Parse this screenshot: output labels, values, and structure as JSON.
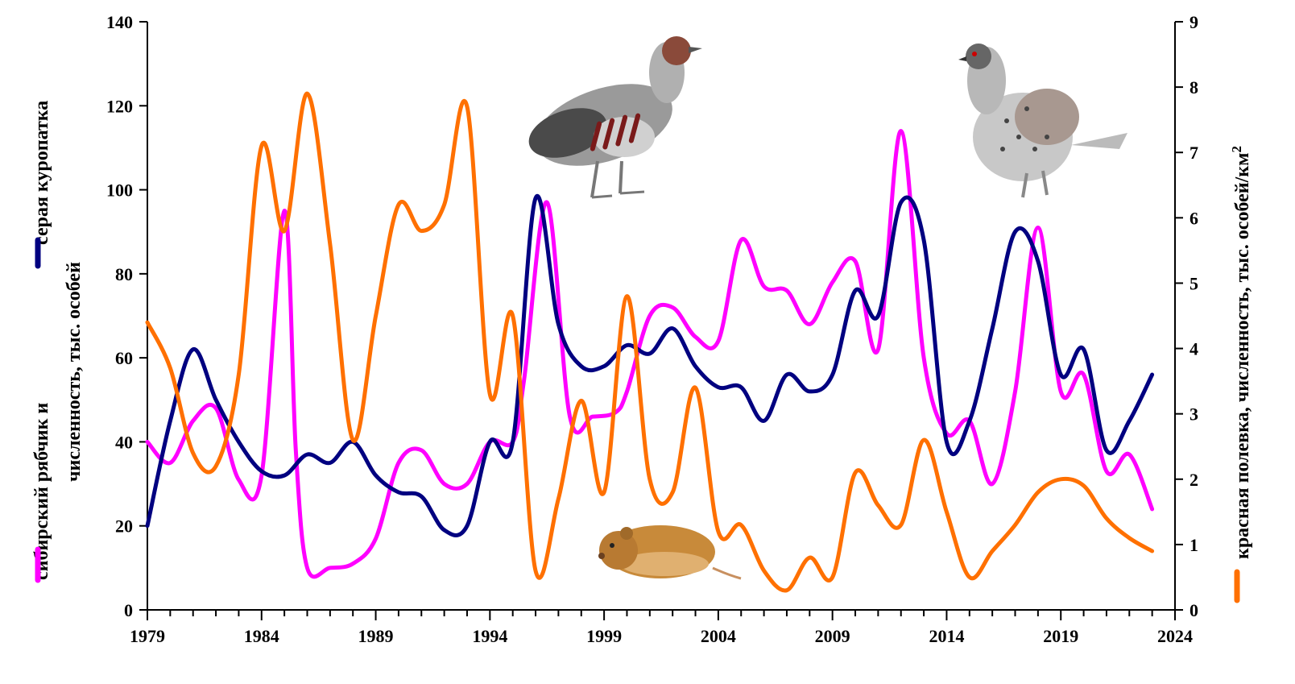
{
  "chart_data": {
    "type": "line",
    "x_range": [
      1979,
      2024
    ],
    "x_ticks": [
      1979,
      1984,
      1989,
      1994,
      1999,
      2004,
      2009,
      2014,
      2019,
      2024
    ],
    "y_left": {
      "range": [
        0,
        140
      ],
      "ticks": [
        0,
        20,
        40,
        60,
        80,
        100,
        120,
        140
      ]
    },
    "y_right": {
      "range": [
        0,
        9
      ],
      "ticks": [
        0,
        1,
        2,
        3,
        4,
        5,
        6,
        7,
        8,
        9
      ]
    },
    "left_axis_title_line1": "сибирский рябчик и серая куропатка",
    "left_axis_title_line1a": "сибирский рябчик и",
    "left_axis_title_line1b": "серая куропатка",
    "left_axis_title_line2": "численность, тыс. особей",
    "right_axis_title": "красная полевка, численность, тыс. особей/км",
    "right_axis_title_sup": "2",
    "grid": false,
    "series": [
      {
        "color": "#ff00ff",
        "axis": "left",
        "points": [
          [
            1979,
            40
          ],
          [
            1980,
            35
          ],
          [
            1981,
            45
          ],
          [
            1982,
            48
          ],
          [
            1983,
            31
          ],
          [
            1984,
            32
          ],
          [
            1985,
            95
          ],
          [
            1985.5,
            38
          ],
          [
            1986,
            10
          ],
          [
            1987,
            10
          ],
          [
            1988,
            11
          ],
          [
            1989,
            17
          ],
          [
            1990,
            35
          ],
          [
            1991,
            38
          ],
          [
            1992,
            30
          ],
          [
            1993,
            30
          ],
          [
            1994,
            40
          ],
          [
            1995,
            40
          ],
          [
            1995.5,
            55
          ],
          [
            1996.5,
            97
          ],
          [
            1997.5,
            46
          ],
          [
            1998.5,
            46
          ],
          [
            1999.5,
            47
          ],
          [
            2000,
            52
          ],
          [
            2001,
            70
          ],
          [
            2002,
            72
          ],
          [
            2003,
            65
          ],
          [
            2004,
            64
          ],
          [
            2005,
            88
          ],
          [
            2006,
            77
          ],
          [
            2007,
            76
          ],
          [
            2008,
            68
          ],
          [
            2009,
            78
          ],
          [
            2010,
            83
          ],
          [
            2011,
            62
          ],
          [
            2012,
            114
          ],
          [
            2013,
            60
          ],
          [
            2014,
            42
          ],
          [
            2015,
            45
          ],
          [
            2016,
            30
          ],
          [
            2017,
            52
          ],
          [
            2018,
            91
          ],
          [
            2019,
            52
          ],
          [
            2020,
            56
          ],
          [
            2021,
            33
          ],
          [
            2022,
            37
          ],
          [
            2023,
            24
          ]
        ]
      },
      {
        "color": "#000080",
        "axis": "left",
        "points": [
          [
            1979,
            20
          ],
          [
            1980,
            45
          ],
          [
            1981,
            62
          ],
          [
            1982,
            50
          ],
          [
            1983,
            40
          ],
          [
            1984,
            33
          ],
          [
            1985,
            32
          ],
          [
            1986,
            37
          ],
          [
            1987,
            35
          ],
          [
            1988,
            40
          ],
          [
            1989,
            32
          ],
          [
            1990,
            28
          ],
          [
            1991,
            27
          ],
          [
            1992,
            19
          ],
          [
            1993,
            20
          ],
          [
            1994,
            40
          ],
          [
            1995,
            40
          ],
          [
            1996,
            98
          ],
          [
            1997,
            68
          ],
          [
            1998,
            58
          ],
          [
            1999,
            58
          ],
          [
            2000,
            63
          ],
          [
            2001,
            61
          ],
          [
            2002,
            67
          ],
          [
            2003,
            58
          ],
          [
            2004,
            53
          ],
          [
            2005,
            53
          ],
          [
            2006,
            45
          ],
          [
            2007,
            56
          ],
          [
            2008,
            52
          ],
          [
            2009,
            56
          ],
          [
            2010,
            76
          ],
          [
            2011,
            70
          ],
          [
            2012,
            97
          ],
          [
            2013,
            88
          ],
          [
            2014,
            40
          ],
          [
            2015,
            45
          ],
          [
            2016,
            67
          ],
          [
            2017,
            90
          ],
          [
            2018,
            83
          ],
          [
            2019,
            56
          ],
          [
            2020,
            62
          ],
          [
            2021,
            38
          ],
          [
            2022,
            45
          ],
          [
            2023,
            56
          ]
        ]
      },
      {
        "color": "#ff7000",
        "axis": "right",
        "points": [
          [
            1979,
            4.4
          ],
          [
            1980,
            3.7
          ],
          [
            1981,
            2.4
          ],
          [
            1982,
            2.2
          ],
          [
            1983,
            3.6
          ],
          [
            1984,
            7.1
          ],
          [
            1985,
            5.8
          ],
          [
            1986,
            7.9
          ],
          [
            1987,
            5.6
          ],
          [
            1988,
            2.6
          ],
          [
            1989,
            4.5
          ],
          [
            1990,
            6.2
          ],
          [
            1991,
            5.8
          ],
          [
            1992,
            6.2
          ],
          [
            1993,
            7.7
          ],
          [
            1994,
            3.3
          ],
          [
            1995,
            4.5
          ],
          [
            1996,
            0.6
          ],
          [
            1997,
            1.7
          ],
          [
            1998,
            3.2
          ],
          [
            1999,
            1.8
          ],
          [
            2000,
            4.8
          ],
          [
            2001,
            2.0
          ],
          [
            2002,
            1.8
          ],
          [
            2003,
            3.4
          ],
          [
            2004,
            1.2
          ],
          [
            2005,
            1.3
          ],
          [
            2006,
            0.6
          ],
          [
            2007,
            0.3
          ],
          [
            2008,
            0.8
          ],
          [
            2009,
            0.5
          ],
          [
            2010,
            2.1
          ],
          [
            2011,
            1.6
          ],
          [
            2012,
            1.3
          ],
          [
            2013,
            2.6
          ],
          [
            2014,
            1.5
          ],
          [
            2015,
            0.5
          ],
          [
            2016,
            0.9
          ],
          [
            2017,
            1.3
          ],
          [
            2018,
            1.8
          ],
          [
            2019,
            2.0
          ],
          [
            2020,
            1.9
          ],
          [
            2021,
            1.4
          ],
          [
            2022,
            1.1
          ],
          [
            2023,
            0.9
          ]
        ]
      }
    ]
  }
}
